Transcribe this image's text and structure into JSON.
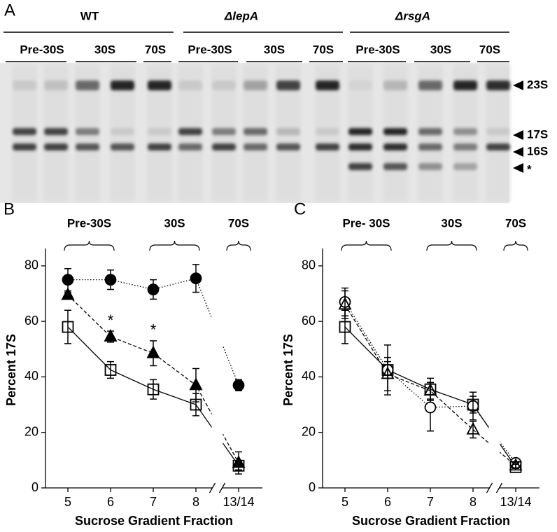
{
  "panel_a": {
    "label": "A",
    "strains": [
      {
        "name": "WT",
        "groups": [
          "Pre-30S",
          "30S",
          "70S"
        ]
      },
      {
        "name": "ΔlepA",
        "groups": [
          "Pre-30S",
          "30S",
          "70S"
        ]
      },
      {
        "name": "ΔrsgA",
        "groups": [
          "Pre-30S",
          "30S",
          "70S"
        ]
      }
    ],
    "markers": [
      "23S",
      "17S",
      "16S",
      "*"
    ]
  },
  "chart_data": [
    {
      "type": "line",
      "panel_label": "B",
      "ylabel": "Percent 17S",
      "xlabel": "Sucrose Gradient Fraction",
      "categories": [
        "5",
        "6",
        "7",
        "8",
        "13/14"
      ],
      "groups": [
        {
          "label": "Pre-30S",
          "from": "5",
          "to": "6"
        },
        {
          "label": "30S",
          "from": "7",
          "to": "8"
        },
        {
          "label": "70S",
          "from": "13/14",
          "to": "13/14"
        }
      ],
      "ylim": [
        0,
        85
      ],
      "yticks": [
        0,
        20,
        40,
        60,
        80
      ],
      "axis_break": true,
      "series": [
        {
          "marker": "circle",
          "filled": true,
          "line_style": "dotted",
          "color": "#000000",
          "values": [
            75,
            75,
            71.5,
            75.5,
            37
          ],
          "errors": [
            4,
            3.5,
            3.5,
            5,
            2
          ]
        },
        {
          "marker": "triangle",
          "filled": true,
          "line_style": "dashed",
          "color": "#000000",
          "values": [
            69.5,
            54.5,
            48.5,
            37,
            9
          ],
          "errors": [
            1,
            2,
            4.5,
            6,
            4
          ]
        },
        {
          "marker": "square",
          "filled": false,
          "line_style": "solid",
          "color": "#000000",
          "values": [
            58,
            42.5,
            35.5,
            30,
            8
          ],
          "errors": [
            6,
            3,
            3.5,
            4,
            1.5
          ]
        }
      ],
      "annotations": [
        {
          "text": "*",
          "x": "6"
        },
        {
          "text": "*",
          "x": "7"
        }
      ]
    },
    {
      "type": "line",
      "panel_label": "C",
      "ylabel": "Percent 17S",
      "xlabel": "Sucrose Gradient Fraction",
      "categories": [
        "5",
        "6",
        "7",
        "8",
        "13/14"
      ],
      "groups": [
        {
          "label": "Pre- 30S",
          "from": "5",
          "to": "6"
        },
        {
          "label": "30S",
          "from": "7",
          "to": "8"
        },
        {
          "label": "70S",
          "from": "13/14",
          "to": "13/14"
        }
      ],
      "ylim": [
        0,
        85
      ],
      "yticks": [
        0,
        20,
        40,
        60,
        80
      ],
      "axis_break": true,
      "series": [
        {
          "marker": "circle",
          "filled": false,
          "line_style": "dotted",
          "color": "#000000",
          "values": [
            67,
            42.5,
            29,
            29.5,
            9
          ],
          "errors": [
            5,
            9,
            8.5,
            5,
            1
          ]
        },
        {
          "marker": "triangle",
          "filled": false,
          "line_style": "dashed",
          "color": "#000000",
          "values": [
            66,
            41,
            35,
            21,
            8
          ],
          "errors": [
            5,
            6,
            3,
            3,
            1
          ]
        },
        {
          "marker": "square",
          "filled": false,
          "line_style": "solid",
          "color": "#000000",
          "values": [
            58,
            42.5,
            35.5,
            30,
            7.5
          ],
          "errors": [
            6,
            3,
            4,
            3,
            1
          ]
        }
      ],
      "annotations": []
    }
  ]
}
